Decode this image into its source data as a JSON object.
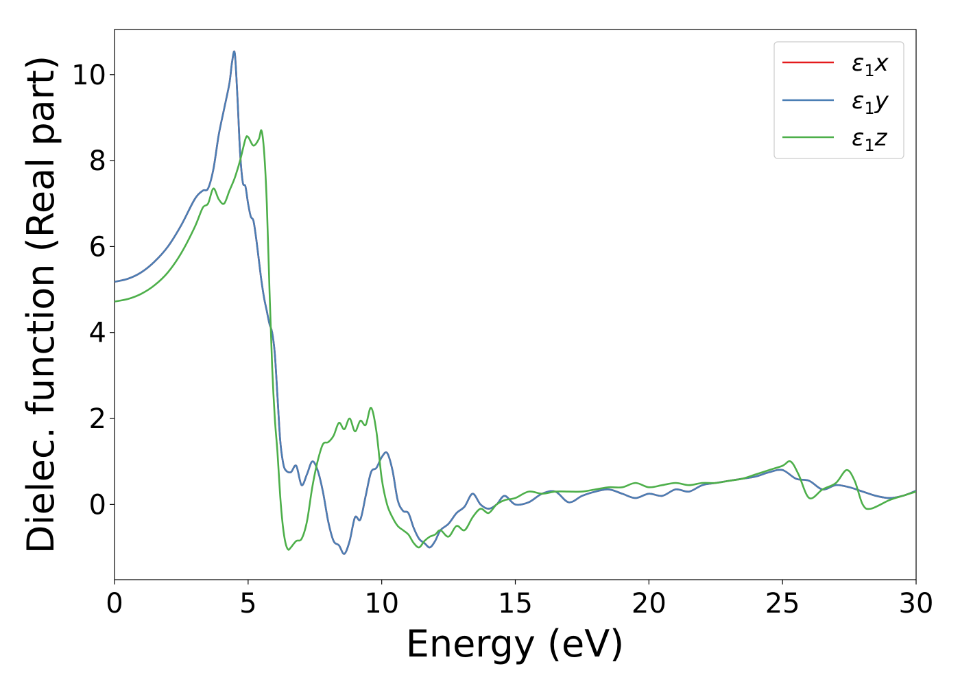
{
  "chart_data": {
    "type": "line",
    "title": "",
    "xlabel": "Energy (eV)",
    "ylabel": "Dielec. function (Real part)",
    "xlim": [
      0,
      30
    ],
    "ylim": [
      -1.75,
      11.05
    ],
    "xticks": [
      0,
      5,
      10,
      15,
      20,
      25,
      30
    ],
    "yticks": [
      0,
      2,
      4,
      6,
      8,
      10
    ],
    "grid": false,
    "legend_position": "top-right",
    "series": [
      {
        "name": "ε₁x",
        "color": "#e41a1c",
        "x": [
          0,
          0.5,
          1.0,
          1.5,
          2.0,
          2.5,
          3.0,
          3.3,
          3.5,
          3.7,
          3.9,
          4.1,
          4.3,
          4.4,
          4.5,
          4.6,
          4.7,
          4.8,
          4.9,
          5.0,
          5.1,
          5.2,
          5.3,
          5.4,
          5.5,
          5.6,
          5.7,
          5.8,
          5.9,
          6.0,
          6.1,
          6.2,
          6.3,
          6.4,
          6.6,
          6.8,
          7.0,
          7.2,
          7.4,
          7.6,
          7.8,
          8.0,
          8.2,
          8.4,
          8.6,
          8.8,
          9.0,
          9.2,
          9.4,
          9.6,
          9.8,
          10.0,
          10.2,
          10.4,
          10.6,
          10.8,
          11.0,
          11.2,
          11.4,
          11.6,
          11.8,
          12.0,
          12.2,
          12.5,
          12.8,
          13.1,
          13.4,
          13.7,
          14.0,
          14.3,
          14.6,
          15.0,
          15.5,
          16.0,
          16.5,
          17.0,
          17.5,
          18.0,
          18.5,
          19.0,
          19.5,
          20.0,
          20.5,
          21.0,
          21.5,
          22.0,
          22.5,
          23.0,
          23.5,
          24.0,
          24.5,
          25.0,
          25.5,
          26.0,
          26.5,
          27.0,
          27.5,
          28.0,
          28.5,
          29.0,
          29.5,
          30.0
        ],
        "y": [
          5.18,
          5.25,
          5.4,
          5.65,
          6.0,
          6.5,
          7.1,
          7.3,
          7.35,
          7.8,
          8.6,
          9.2,
          9.8,
          10.3,
          10.5,
          9.5,
          8.2,
          7.5,
          7.4,
          7.0,
          6.7,
          6.6,
          6.2,
          5.7,
          5.2,
          4.8,
          4.5,
          4.2,
          4.0,
          3.5,
          2.5,
          1.5,
          1.0,
          0.8,
          0.75,
          0.9,
          0.45,
          0.7,
          1.0,
          0.8,
          0.3,
          -0.4,
          -0.85,
          -0.95,
          -1.15,
          -0.85,
          -0.3,
          -0.35,
          0.2,
          0.75,
          0.85,
          1.1,
          1.2,
          0.8,
          0.1,
          -0.15,
          -0.2,
          -0.55,
          -0.8,
          -0.9,
          -1.0,
          -0.85,
          -0.6,
          -0.45,
          -0.2,
          -0.05,
          0.25,
          0.0,
          -0.1,
          0.0,
          0.2,
          0.0,
          0.05,
          0.25,
          0.3,
          0.05,
          0.2,
          0.3,
          0.35,
          0.25,
          0.15,
          0.25,
          0.2,
          0.35,
          0.3,
          0.45,
          0.5,
          0.55,
          0.6,
          0.65,
          0.75,
          0.8,
          0.6,
          0.55,
          0.35,
          0.45,
          0.4,
          0.3,
          0.2,
          0.15,
          0.2,
          0.32
        ]
      },
      {
        "name": "ε₁y",
        "color": "#4a7eb4",
        "x": [
          0,
          0.5,
          1.0,
          1.5,
          2.0,
          2.5,
          3.0,
          3.3,
          3.5,
          3.7,
          3.9,
          4.1,
          4.3,
          4.4,
          4.5,
          4.6,
          4.7,
          4.8,
          4.9,
          5.0,
          5.1,
          5.2,
          5.3,
          5.4,
          5.5,
          5.6,
          5.7,
          5.8,
          5.9,
          6.0,
          6.1,
          6.2,
          6.3,
          6.4,
          6.6,
          6.8,
          7.0,
          7.2,
          7.4,
          7.6,
          7.8,
          8.0,
          8.2,
          8.4,
          8.6,
          8.8,
          9.0,
          9.2,
          9.4,
          9.6,
          9.8,
          10.0,
          10.2,
          10.4,
          10.6,
          10.8,
          11.0,
          11.2,
          11.4,
          11.6,
          11.8,
          12.0,
          12.2,
          12.5,
          12.8,
          13.1,
          13.4,
          13.7,
          14.0,
          14.3,
          14.6,
          15.0,
          15.5,
          16.0,
          16.5,
          17.0,
          17.5,
          18.0,
          18.5,
          19.0,
          19.5,
          20.0,
          20.5,
          21.0,
          21.5,
          22.0,
          22.5,
          23.0,
          23.5,
          24.0,
          24.5,
          25.0,
          25.5,
          26.0,
          26.5,
          27.0,
          27.5,
          28.0,
          28.5,
          29.0,
          29.5,
          30.0
        ],
        "y": [
          5.18,
          5.25,
          5.4,
          5.65,
          6.0,
          6.5,
          7.1,
          7.3,
          7.35,
          7.8,
          8.6,
          9.2,
          9.8,
          10.3,
          10.5,
          9.5,
          8.2,
          7.5,
          7.4,
          7.0,
          6.7,
          6.6,
          6.2,
          5.7,
          5.2,
          4.8,
          4.5,
          4.2,
          4.0,
          3.5,
          2.5,
          1.5,
          1.0,
          0.8,
          0.75,
          0.9,
          0.45,
          0.7,
          1.0,
          0.8,
          0.3,
          -0.4,
          -0.85,
          -0.95,
          -1.15,
          -0.85,
          -0.3,
          -0.35,
          0.2,
          0.75,
          0.85,
          1.1,
          1.2,
          0.8,
          0.1,
          -0.15,
          -0.2,
          -0.55,
          -0.8,
          -0.9,
          -1.0,
          -0.85,
          -0.6,
          -0.45,
          -0.2,
          -0.05,
          0.25,
          0.0,
          -0.1,
          0.0,
          0.2,
          0.0,
          0.05,
          0.25,
          0.3,
          0.05,
          0.2,
          0.3,
          0.35,
          0.25,
          0.15,
          0.25,
          0.2,
          0.35,
          0.3,
          0.45,
          0.5,
          0.55,
          0.6,
          0.65,
          0.75,
          0.8,
          0.6,
          0.55,
          0.35,
          0.45,
          0.4,
          0.3,
          0.2,
          0.15,
          0.2,
          0.32
        ]
      },
      {
        "name": "ε₁z",
        "color": "#4daf4a",
        "x": [
          0,
          0.5,
          1.0,
          1.5,
          2.0,
          2.5,
          3.0,
          3.3,
          3.5,
          3.7,
          3.9,
          4.1,
          4.3,
          4.5,
          4.7,
          4.9,
          5.0,
          5.2,
          5.4,
          5.5,
          5.6,
          5.7,
          5.8,
          5.9,
          6.0,
          6.1,
          6.2,
          6.3,
          6.4,
          6.5,
          6.6,
          6.8,
          7.0,
          7.2,
          7.4,
          7.6,
          7.8,
          8.0,
          8.2,
          8.4,
          8.6,
          8.8,
          9.0,
          9.2,
          9.4,
          9.6,
          9.8,
          10.0,
          10.2,
          10.4,
          10.6,
          10.8,
          11.0,
          11.2,
          11.4,
          11.6,
          11.8,
          12.0,
          12.2,
          12.5,
          12.8,
          13.1,
          13.4,
          13.7,
          14.0,
          14.3,
          14.6,
          15.0,
          15.5,
          16.0,
          16.5,
          17.0,
          17.5,
          18.0,
          18.5,
          19.0,
          19.5,
          20.0,
          20.5,
          21.0,
          21.5,
          22.0,
          22.5,
          23.0,
          23.5,
          24.0,
          24.5,
          25.0,
          25.3,
          25.6,
          26.0,
          26.5,
          27.0,
          27.4,
          27.7,
          28.0,
          28.3,
          29.0,
          29.5,
          30.0
        ],
        "y": [
          4.72,
          4.78,
          4.9,
          5.1,
          5.4,
          5.85,
          6.45,
          6.9,
          7.0,
          7.35,
          7.1,
          7.0,
          7.3,
          7.6,
          8.0,
          8.5,
          8.55,
          8.35,
          8.5,
          8.7,
          8.2,
          7.0,
          5.0,
          3.2,
          2.0,
          1.2,
          0.2,
          -0.5,
          -0.9,
          -1.05,
          -1.0,
          -0.85,
          -0.8,
          -0.4,
          0.4,
          1.0,
          1.4,
          1.45,
          1.6,
          1.9,
          1.75,
          2.0,
          1.7,
          1.95,
          1.85,
          2.25,
          1.7,
          0.6,
          0.0,
          -0.3,
          -0.5,
          -0.6,
          -0.7,
          -0.9,
          -1.0,
          -0.85,
          -0.75,
          -0.7,
          -0.6,
          -0.75,
          -0.5,
          -0.6,
          -0.3,
          -0.1,
          -0.2,
          0.0,
          0.1,
          0.15,
          0.3,
          0.25,
          0.3,
          0.3,
          0.3,
          0.35,
          0.4,
          0.4,
          0.5,
          0.4,
          0.45,
          0.5,
          0.45,
          0.5,
          0.5,
          0.55,
          0.6,
          0.7,
          0.8,
          0.9,
          1.0,
          0.7,
          0.15,
          0.35,
          0.5,
          0.8,
          0.55,
          0.0,
          -0.1,
          0.1,
          0.2,
          0.3
        ]
      }
    ],
    "legend": [
      {
        "label": "ε",
        "sub": "1",
        "axis": "x",
        "color": "#e41a1c"
      },
      {
        "label": "ε",
        "sub": "1",
        "axis": "y",
        "color": "#4a7eb4"
      },
      {
        "label": "ε",
        "sub": "1",
        "axis": "z",
        "color": "#4daf4a"
      }
    ]
  }
}
